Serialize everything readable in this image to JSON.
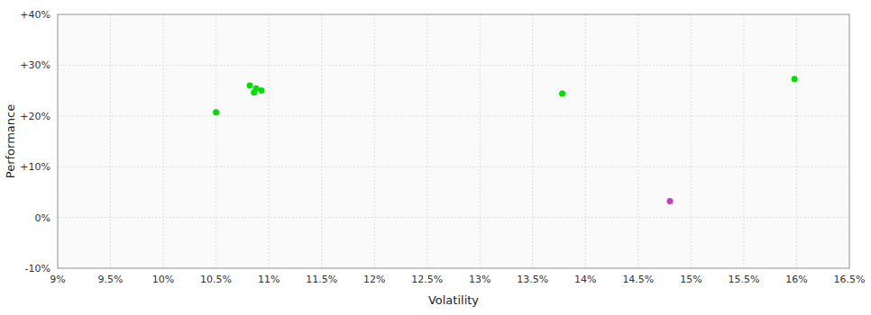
{
  "chart_data": {
    "type": "scatter",
    "xlabel": "Volatility",
    "ylabel": "Performance",
    "xlim": [
      0.09,
      0.165
    ],
    "ylim": [
      -0.1,
      0.4
    ],
    "xticks": [
      {
        "value": 0.09,
        "label": "9%"
      },
      {
        "value": 0.095,
        "label": "9.5%"
      },
      {
        "value": 0.1,
        "label": "10%"
      },
      {
        "value": 0.105,
        "label": "10.5%"
      },
      {
        "value": 0.11,
        "label": "11%"
      },
      {
        "value": 0.115,
        "label": "11.5%"
      },
      {
        "value": 0.12,
        "label": "12%"
      },
      {
        "value": 0.125,
        "label": "12.5%"
      },
      {
        "value": 0.13,
        "label": "13%"
      },
      {
        "value": 0.135,
        "label": "13.5%"
      },
      {
        "value": 0.14,
        "label": "14%"
      },
      {
        "value": 0.145,
        "label": "14.5%"
      },
      {
        "value": 0.15,
        "label": "15%"
      },
      {
        "value": 0.155,
        "label": "15.5%"
      },
      {
        "value": 0.16,
        "label": "16%"
      },
      {
        "value": 0.165,
        "label": "16.5%"
      }
    ],
    "yticks": [
      {
        "value": -0.1,
        "label": "-10%"
      },
      {
        "value": 0.0,
        "label": "0%"
      },
      {
        "value": 0.1,
        "label": "+10%"
      },
      {
        "value": 0.2,
        "label": "+20%"
      },
      {
        "value": 0.3,
        "label": "+30%"
      },
      {
        "value": 0.4,
        "label": "+40%"
      }
    ],
    "grid": true,
    "series": [
      {
        "color": "#00dd00",
        "x": [
          0.105,
          0.1082,
          0.1088,
          0.1093,
          0.1086,
          0.1378,
          0.1598
        ],
        "values": [
          0.207,
          0.26,
          0.254,
          0.25,
          0.246,
          0.244,
          0.273
        ]
      },
      {
        "color": "#bb44bb",
        "x": [
          0.148
        ],
        "values": [
          0.032
        ]
      }
    ]
  }
}
